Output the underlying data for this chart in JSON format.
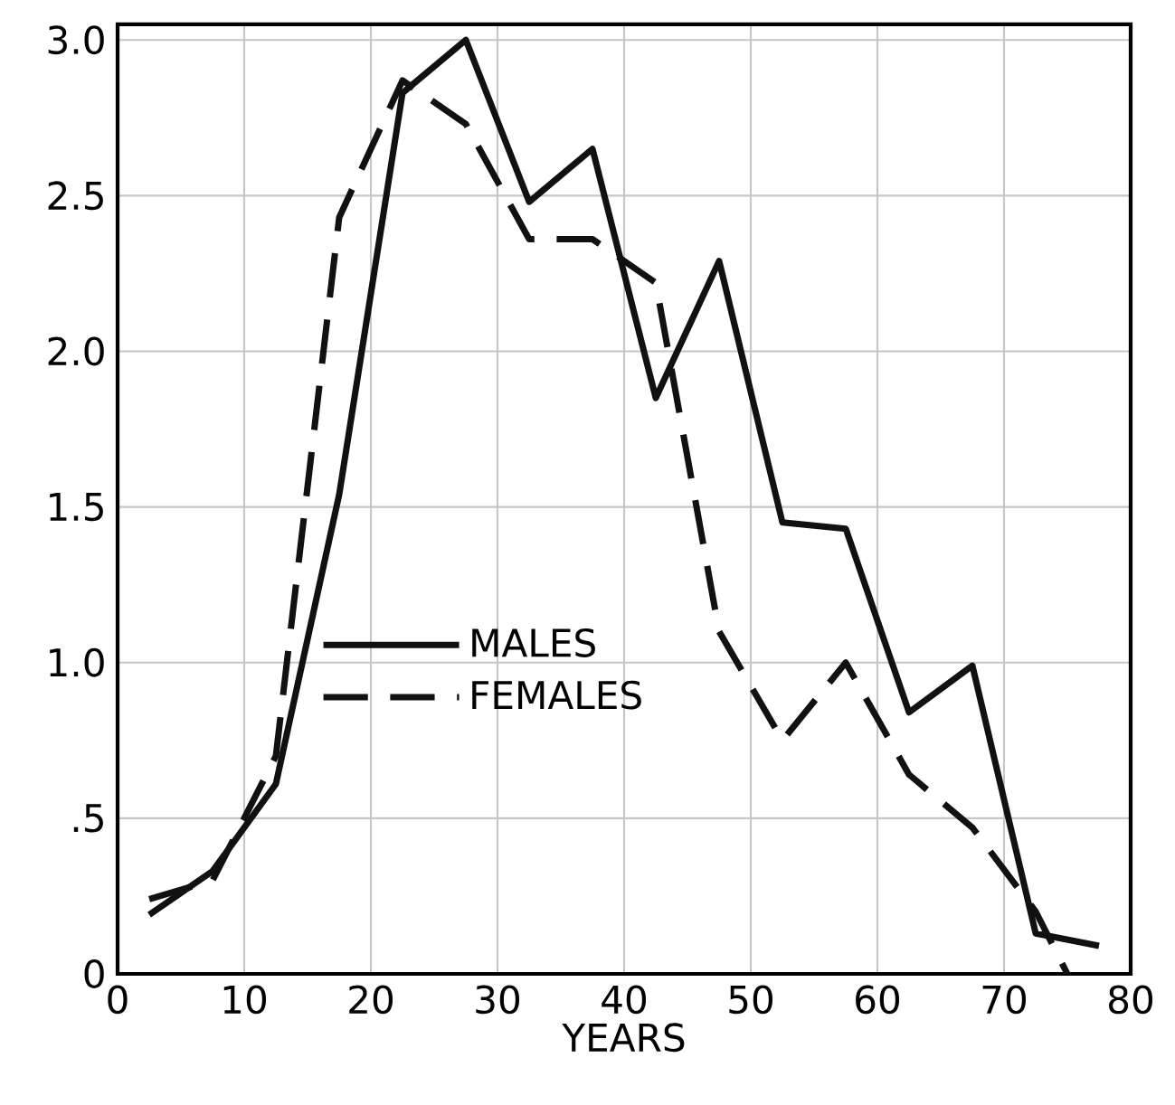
{
  "chart_data": {
    "type": "line",
    "xlabel": "YEARS",
    "xlim": [
      0,
      80
    ],
    "ylim": [
      0,
      3.05
    ],
    "xticks": [
      0,
      10,
      20,
      30,
      40,
      50,
      60,
      70,
      80
    ],
    "yticks": [
      {
        "value": 0,
        "label": "0"
      },
      {
        "value": 0.5,
        "label": ".5"
      },
      {
        "value": 1.0,
        "label": "1.0"
      },
      {
        "value": 1.5,
        "label": "1.5"
      },
      {
        "value": 2.0,
        "label": "2.0"
      },
      {
        "value": 2.5,
        "label": "2.5"
      },
      {
        "value": 3.0,
        "label": "3.0"
      }
    ],
    "grid": true,
    "legend": "left",
    "marker": "none",
    "series": [
      {
        "name": "MALES",
        "color": "#111111",
        "line_style": "solid",
        "x": [
          2.5,
          7.5,
          12.5,
          17.5,
          22.5,
          27.5,
          32.5,
          37.5,
          42.5,
          47.5,
          52.5,
          57.5,
          62.5,
          67.5,
          72.5,
          77.5
        ],
        "values": [
          0.19,
          0.33,
          0.61,
          1.54,
          2.83,
          3.0,
          2.48,
          2.65,
          1.85,
          2.29,
          1.45,
          1.43,
          0.84,
          0.99,
          0.13,
          0.09
        ]
      },
      {
        "name": "FEMALES",
        "color": "#111111",
        "line_style": "dashed",
        "x": [
          2.5,
          7.5,
          12.5,
          17.5,
          22.5,
          27.5,
          32.5,
          37.5,
          42.5,
          47.5,
          52.5,
          57.5,
          62.5,
          67.5,
          72.5,
          75
        ],
        "values": [
          0.24,
          0.3,
          0.7,
          2.43,
          2.87,
          2.73,
          2.36,
          2.36,
          2.22,
          1.1,
          0.75,
          1.0,
          0.64,
          0.47,
          0.2,
          0.0
        ]
      }
    ]
  }
}
